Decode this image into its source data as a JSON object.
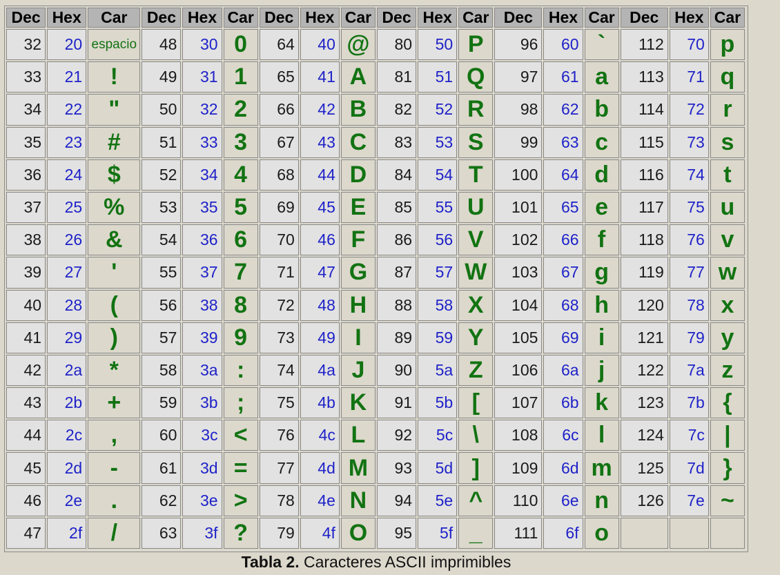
{
  "table": {
    "headers": [
      "Dec",
      "Hex",
      "Car",
      "Dec",
      "Hex",
      "Car",
      "Dec",
      "Hex",
      "Car",
      "Dec",
      "Hex",
      "Car",
      "Dec",
      "Hex",
      "Car",
      "Dec",
      "Hex",
      "Car"
    ],
    "blocks": [
      [
        {
          "dec": "32",
          "hex": "20",
          "car": "espacio"
        },
        {
          "dec": "33",
          "hex": "21",
          "car": "!"
        },
        {
          "dec": "34",
          "hex": "22",
          "car": "\""
        },
        {
          "dec": "35",
          "hex": "23",
          "car": "#"
        },
        {
          "dec": "36",
          "hex": "24",
          "car": "$"
        },
        {
          "dec": "37",
          "hex": "25",
          "car": "%"
        },
        {
          "dec": "38",
          "hex": "26",
          "car": "&"
        },
        {
          "dec": "39",
          "hex": "27",
          "car": "'"
        },
        {
          "dec": "40",
          "hex": "28",
          "car": "("
        },
        {
          "dec": "41",
          "hex": "29",
          "car": ")"
        },
        {
          "dec": "42",
          "hex": "2a",
          "car": "*"
        },
        {
          "dec": "43",
          "hex": "2b",
          "car": "+"
        },
        {
          "dec": "44",
          "hex": "2c",
          "car": ","
        },
        {
          "dec": "45",
          "hex": "2d",
          "car": "-"
        },
        {
          "dec": "46",
          "hex": "2e",
          "car": "."
        },
        {
          "dec": "47",
          "hex": "2f",
          "car": "/"
        }
      ],
      [
        {
          "dec": "48",
          "hex": "30",
          "car": "0"
        },
        {
          "dec": "49",
          "hex": "31",
          "car": "1"
        },
        {
          "dec": "50",
          "hex": "32",
          "car": "2"
        },
        {
          "dec": "51",
          "hex": "33",
          "car": "3"
        },
        {
          "dec": "52",
          "hex": "34",
          "car": "4"
        },
        {
          "dec": "53",
          "hex": "35",
          "car": "5"
        },
        {
          "dec": "54",
          "hex": "36",
          "car": "6"
        },
        {
          "dec": "55",
          "hex": "37",
          "car": "7"
        },
        {
          "dec": "56",
          "hex": "38",
          "car": "8"
        },
        {
          "dec": "57",
          "hex": "39",
          "car": "9"
        },
        {
          "dec": "58",
          "hex": "3a",
          "car": ":"
        },
        {
          "dec": "59",
          "hex": "3b",
          "car": ";"
        },
        {
          "dec": "60",
          "hex": "3c",
          "car": "<"
        },
        {
          "dec": "61",
          "hex": "3d",
          "car": "="
        },
        {
          "dec": "62",
          "hex": "3e",
          "car": ">"
        },
        {
          "dec": "63",
          "hex": "3f",
          "car": "?"
        }
      ],
      [
        {
          "dec": "64",
          "hex": "40",
          "car": "@"
        },
        {
          "dec": "65",
          "hex": "41",
          "car": "A"
        },
        {
          "dec": "66",
          "hex": "42",
          "car": "B"
        },
        {
          "dec": "67",
          "hex": "43",
          "car": "C"
        },
        {
          "dec": "68",
          "hex": "44",
          "car": "D"
        },
        {
          "dec": "69",
          "hex": "45",
          "car": "E"
        },
        {
          "dec": "70",
          "hex": "46",
          "car": "F"
        },
        {
          "dec": "71",
          "hex": "47",
          "car": "G"
        },
        {
          "dec": "72",
          "hex": "48",
          "car": "H"
        },
        {
          "dec": "73",
          "hex": "49",
          "car": "I"
        },
        {
          "dec": "74",
          "hex": "4a",
          "car": "J"
        },
        {
          "dec": "75",
          "hex": "4b",
          "car": "K"
        },
        {
          "dec": "76",
          "hex": "4c",
          "car": "L"
        },
        {
          "dec": "77",
          "hex": "4d",
          "car": "M"
        },
        {
          "dec": "78",
          "hex": "4e",
          "car": "N"
        },
        {
          "dec": "79",
          "hex": "4f",
          "car": "O"
        }
      ],
      [
        {
          "dec": "80",
          "hex": "50",
          "car": "P"
        },
        {
          "dec": "81",
          "hex": "51",
          "car": "Q"
        },
        {
          "dec": "82",
          "hex": "52",
          "car": "R"
        },
        {
          "dec": "83",
          "hex": "53",
          "car": "S"
        },
        {
          "dec": "84",
          "hex": "54",
          "car": "T"
        },
        {
          "dec": "85",
          "hex": "55",
          "car": "U"
        },
        {
          "dec": "86",
          "hex": "56",
          "car": "V"
        },
        {
          "dec": "87",
          "hex": "57",
          "car": "W"
        },
        {
          "dec": "88",
          "hex": "58",
          "car": "X"
        },
        {
          "dec": "89",
          "hex": "59",
          "car": "Y"
        },
        {
          "dec": "90",
          "hex": "5a",
          "car": "Z"
        },
        {
          "dec": "91",
          "hex": "5b",
          "car": "["
        },
        {
          "dec": "92",
          "hex": "5c",
          "car": "\\"
        },
        {
          "dec": "93",
          "hex": "5d",
          "car": "]"
        },
        {
          "dec": "94",
          "hex": "5e",
          "car": "^"
        },
        {
          "dec": "95",
          "hex": "5f",
          "car": "_"
        }
      ],
      [
        {
          "dec": "96",
          "hex": "60",
          "car": "`"
        },
        {
          "dec": "97",
          "hex": "61",
          "car": "a"
        },
        {
          "dec": "98",
          "hex": "62",
          "car": "b"
        },
        {
          "dec": "99",
          "hex": "63",
          "car": "c"
        },
        {
          "dec": "100",
          "hex": "64",
          "car": "d"
        },
        {
          "dec": "101",
          "hex": "65",
          "car": "e"
        },
        {
          "dec": "102",
          "hex": "66",
          "car": "f"
        },
        {
          "dec": "103",
          "hex": "67",
          "car": "g"
        },
        {
          "dec": "104",
          "hex": "68",
          "car": "h"
        },
        {
          "dec": "105",
          "hex": "69",
          "car": "i"
        },
        {
          "dec": "106",
          "hex": "6a",
          "car": "j"
        },
        {
          "dec": "107",
          "hex": "6b",
          "car": "k"
        },
        {
          "dec": "108",
          "hex": "6c",
          "car": "l"
        },
        {
          "dec": "109",
          "hex": "6d",
          "car": "m"
        },
        {
          "dec": "110",
          "hex": "6e",
          "car": "n"
        },
        {
          "dec": "111",
          "hex": "6f",
          "car": "o"
        }
      ],
      [
        {
          "dec": "112",
          "hex": "70",
          "car": "p"
        },
        {
          "dec": "113",
          "hex": "71",
          "car": "q"
        },
        {
          "dec": "114",
          "hex": "72",
          "car": "r"
        },
        {
          "dec": "115",
          "hex": "73",
          "car": "s"
        },
        {
          "dec": "116",
          "hex": "74",
          "car": "t"
        },
        {
          "dec": "117",
          "hex": "75",
          "car": "u"
        },
        {
          "dec": "118",
          "hex": "76",
          "car": "v"
        },
        {
          "dec": "119",
          "hex": "77",
          "car": "w"
        },
        {
          "dec": "120",
          "hex": "78",
          "car": "x"
        },
        {
          "dec": "121",
          "hex": "79",
          "car": "y"
        },
        {
          "dec": "122",
          "hex": "7a",
          "car": "z"
        },
        {
          "dec": "123",
          "hex": "7b",
          "car": "{"
        },
        {
          "dec": "124",
          "hex": "7c",
          "car": "|"
        },
        {
          "dec": "125",
          "hex": "7d",
          "car": "}"
        },
        {
          "dec": "126",
          "hex": "7e",
          "car": "~"
        },
        {
          "dec": "",
          "hex": "",
          "car": ""
        }
      ]
    ]
  },
  "caption": {
    "label": "Tabla 2.",
    "text": " Caracteres ASCII imprimibles"
  },
  "colors": {
    "header_bg": "#b4b4b4",
    "cell_bg": "#e2e2e2",
    "page_bg": "#dcd8cc",
    "dec_text": "#1a1a1a",
    "hex_text": "#1f22c8",
    "car_text": "#127312"
  }
}
